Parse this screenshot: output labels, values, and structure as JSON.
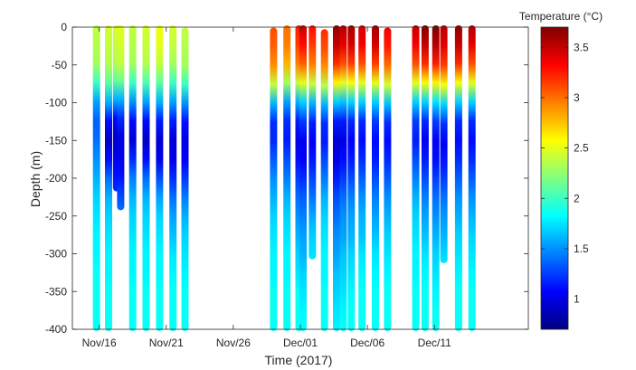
{
  "chart_data": {
    "type": "heatmap",
    "subtype": "profile-section",
    "xlabel": "Time (2017)",
    "ylabel": "Depth (m)",
    "colorbar_label": "Temperature (°C)",
    "x_start": "2017-11-14",
    "xlim": [
      "2017-11-14",
      "2017-12-18"
    ],
    "ylim": [
      -400,
      0
    ],
    "clim": [
      0.7,
      3.7
    ],
    "colormap": "jet",
    "x_ticks": [
      {
        "date": "2017-11-16",
        "label": "Nov/16"
      },
      {
        "date": "2017-11-21",
        "label": "Nov/21"
      },
      {
        "date": "2017-11-26",
        "label": "Nov/26"
      },
      {
        "date": "2017-12-01",
        "label": "Dec/01"
      },
      {
        "date": "2017-12-06",
        "label": "Dec/06"
      },
      {
        "date": "2017-12-11",
        "label": "Dec/11"
      }
    ],
    "y_ticks": [
      0,
      -50,
      -100,
      -150,
      -200,
      -250,
      -300,
      -350,
      -400
    ],
    "colorbar_ticks": [
      1,
      1.5,
      2,
      2.5,
      3,
      3.5
    ],
    "profiles": [
      {
        "date": "2017-11-15.8",
        "top": 0,
        "bottom": -400,
        "temps": [
          2.4,
          2.35,
          2.3,
          2.0,
          1.55,
          1.35,
          1.4,
          1.5,
          1.6,
          1.7,
          1.75,
          1.8,
          1.8,
          1.85,
          1.85,
          1.85,
          1.85
        ]
      },
      {
        "date": "2017-11-16.7",
        "top": 0,
        "bottom": -400,
        "temps": [
          2.45,
          2.4,
          2.35,
          2.1,
          1.6,
          1.1,
          0.9,
          1.1,
          1.4,
          1.6,
          1.7,
          1.75,
          1.8,
          1.8,
          1.85,
          1.85,
          1.85
        ]
      },
      {
        "date": "2017-11-17.3",
        "top": 0,
        "bottom": -215,
        "temps": [
          2.45,
          2.4,
          2.35,
          2.1,
          1.6,
          1.1,
          0.9,
          1.0,
          1.1,
          1.2
        ]
      },
      {
        "date": "2017-11-17.6",
        "top": 0,
        "bottom": -240,
        "temps": [
          2.5,
          2.45,
          2.4,
          2.15,
          1.6,
          1.2,
          1.0,
          1.0,
          1.1,
          1.25,
          1.4
        ]
      },
      {
        "date": "2017-11-18.5",
        "top": 0,
        "bottom": -400,
        "temps": [
          2.4,
          2.35,
          2.3,
          2.0,
          1.5,
          1.1,
          0.95,
          1.2,
          1.45,
          1.6,
          1.7,
          1.75,
          1.8,
          1.8,
          1.85,
          1.85,
          1.85
        ]
      },
      {
        "date": "2017-11-19.5",
        "top": 0,
        "bottom": -400,
        "temps": [
          2.45,
          2.4,
          2.35,
          2.05,
          1.55,
          1.1,
          0.9,
          1.1,
          1.4,
          1.6,
          1.7,
          1.75,
          1.8,
          1.8,
          1.85,
          1.85,
          1.85
        ]
      },
      {
        "date": "2017-11-20.5",
        "top": 0,
        "bottom": -400,
        "temps": [
          2.55,
          2.5,
          2.4,
          2.1,
          1.6,
          1.15,
          0.95,
          1.0,
          1.3,
          1.55,
          1.7,
          1.75,
          1.8,
          1.8,
          1.85,
          1.85,
          1.85
        ]
      },
      {
        "date": "2017-11-21.5",
        "top": 0,
        "bottom": -400,
        "temps": [
          2.45,
          2.4,
          2.3,
          2.0,
          1.55,
          1.15,
          0.95,
          1.0,
          1.2,
          1.4,
          1.55,
          1.65,
          1.75,
          1.8,
          1.85,
          1.85,
          1.85
        ]
      },
      {
        "date": "2017-11-22.4",
        "top": -3,
        "bottom": -400,
        "temps": [
          2.4,
          2.35,
          2.3,
          2.0,
          1.5,
          1.1,
          1.0,
          1.05,
          1.25,
          1.45,
          1.6,
          1.7,
          1.75,
          1.8,
          1.85,
          1.85,
          1.85
        ]
      },
      {
        "date": "2017-11-29.0",
        "top": -3,
        "bottom": -400,
        "temps": [
          3.1,
          3.05,
          2.9,
          2.4,
          1.6,
          1.2,
          1.2,
          1.35,
          1.5,
          1.6,
          1.7,
          1.75,
          1.8,
          1.8,
          1.85,
          1.85,
          1.85
        ]
      },
      {
        "date": "2017-11-30.0",
        "top": 0,
        "bottom": -400,
        "temps": [
          3.0,
          2.95,
          2.8,
          2.3,
          1.55,
          1.2,
          1.15,
          1.3,
          1.45,
          1.6,
          1.7,
          1.75,
          1.8,
          1.8,
          1.85,
          1.85,
          1.85
        ]
      },
      {
        "date": "2017-11-30.9",
        "top": 0,
        "bottom": -400,
        "temps": [
          3.25,
          3.15,
          2.95,
          2.4,
          1.6,
          1.15,
          1.0,
          1.1,
          1.25,
          1.4,
          1.5,
          1.6,
          1.7,
          1.75,
          1.85,
          1.85,
          1.85
        ]
      },
      {
        "date": "2017-12-01.2",
        "top": 0,
        "bottom": -400,
        "temps": [
          3.5,
          3.3,
          3.05,
          2.5,
          1.7,
          1.25,
          1.05,
          1.05,
          1.2,
          1.35,
          1.45,
          1.55,
          1.6,
          1.7,
          1.75,
          1.8,
          1.85
        ]
      },
      {
        "date": "2017-12-01.9",
        "top": 0,
        "bottom": -305,
        "temps": [
          3.3,
          3.15,
          2.95,
          2.4,
          1.6,
          1.15,
          1.05,
          1.15,
          1.3,
          1.45,
          1.6,
          1.7,
          1.75
        ]
      },
      {
        "date": "2017-12-02.8",
        "top": -5,
        "bottom": -400,
        "temps": [
          3.2,
          3.1,
          2.9,
          2.35,
          1.6,
          1.2,
          1.15,
          1.3,
          1.45,
          1.6,
          1.7,
          1.75,
          1.8,
          1.8,
          1.85,
          1.85,
          1.85
        ]
      },
      {
        "date": "2017-12-03.7",
        "top": 0,
        "bottom": -400,
        "temps": [
          3.65,
          3.5,
          3.2,
          2.6,
          1.7,
          1.15,
          0.95,
          1.0,
          1.15,
          1.3,
          1.4,
          1.5,
          1.55,
          1.65,
          1.7,
          1.75,
          1.8
        ]
      },
      {
        "date": "2017-12-04.2",
        "top": 0,
        "bottom": -400,
        "temps": [
          3.55,
          3.4,
          3.1,
          2.5,
          1.65,
          1.15,
          1.0,
          1.1,
          1.25,
          1.4,
          1.5,
          1.55,
          1.65,
          1.7,
          1.75,
          1.8,
          1.85
        ]
      },
      {
        "date": "2017-12-04.8",
        "top": 0,
        "bottom": -400,
        "temps": [
          3.6,
          3.45,
          3.15,
          2.55,
          1.7,
          1.2,
          1.05,
          1.15,
          1.3,
          1.45,
          1.55,
          1.6,
          1.7,
          1.75,
          1.8,
          1.85,
          1.85
        ]
      },
      {
        "date": "2017-12-05.6",
        "top": 0,
        "bottom": -400,
        "temps": [
          3.45,
          3.35,
          3.1,
          2.5,
          1.7,
          1.2,
          1.1,
          1.2,
          1.35,
          1.5,
          1.6,
          1.65,
          1.75,
          1.8,
          1.85,
          1.85,
          1.85
        ]
      },
      {
        "date": "2017-12-06.6",
        "top": 0,
        "bottom": -400,
        "temps": [
          3.6,
          3.45,
          3.15,
          2.5,
          1.7,
          1.25,
          1.1,
          1.15,
          1.3,
          1.45,
          1.55,
          1.65,
          1.75,
          1.8,
          1.85,
          1.85,
          1.85
        ]
      },
      {
        "date": "2017-12-07.5",
        "top": -3,
        "bottom": -400,
        "temps": [
          3.35,
          3.25,
          3.0,
          2.45,
          1.65,
          1.2,
          1.1,
          1.2,
          1.35,
          1.5,
          1.6,
          1.7,
          1.75,
          1.8,
          1.85,
          1.85,
          1.85
        ]
      },
      {
        "date": "2017-12-09.6",
        "top": 0,
        "bottom": -400,
        "temps": [
          3.5,
          3.35,
          3.1,
          2.5,
          1.7,
          1.25,
          1.15,
          1.3,
          1.45,
          1.6,
          1.7,
          1.75,
          1.8,
          1.8,
          1.85,
          1.85,
          1.85
        ]
      },
      {
        "date": "2017-12-10.3",
        "top": 0,
        "bottom": -400,
        "temps": [
          3.7,
          3.5,
          3.2,
          2.55,
          1.7,
          1.2,
          1.05,
          1.15,
          1.3,
          1.45,
          1.55,
          1.65,
          1.75,
          1.8,
          1.85,
          1.85,
          1.85
        ]
      },
      {
        "date": "2017-12-11.1",
        "top": 0,
        "bottom": -400,
        "temps": [
          3.7,
          3.55,
          3.25,
          2.6,
          1.75,
          1.25,
          1.05,
          1.1,
          1.25,
          1.4,
          1.5,
          1.6,
          1.7,
          1.75,
          1.8,
          1.85,
          1.85
        ]
      },
      {
        "date": "2017-12-11.7",
        "top": 0,
        "bottom": -310,
        "temps": [
          3.55,
          3.4,
          3.15,
          2.55,
          1.7,
          1.2,
          1.05,
          1.15,
          1.3,
          1.45,
          1.55,
          1.65,
          1.75
        ]
      },
      {
        "date": "2017-12-12.8",
        "top": 0,
        "bottom": -400,
        "temps": [
          3.65,
          3.5,
          3.2,
          2.55,
          1.7,
          1.2,
          1.1,
          1.2,
          1.35,
          1.5,
          1.6,
          1.7,
          1.75,
          1.8,
          1.85,
          1.85,
          1.85
        ]
      },
      {
        "date": "2017-12-13.8",
        "top": 0,
        "bottom": -400,
        "temps": [
          3.55,
          3.4,
          3.1,
          2.5,
          1.7,
          1.2,
          1.1,
          1.2,
          1.35,
          1.5,
          1.6,
          1.7,
          1.75,
          1.8,
          1.85,
          1.85,
          1.85
        ]
      }
    ]
  }
}
